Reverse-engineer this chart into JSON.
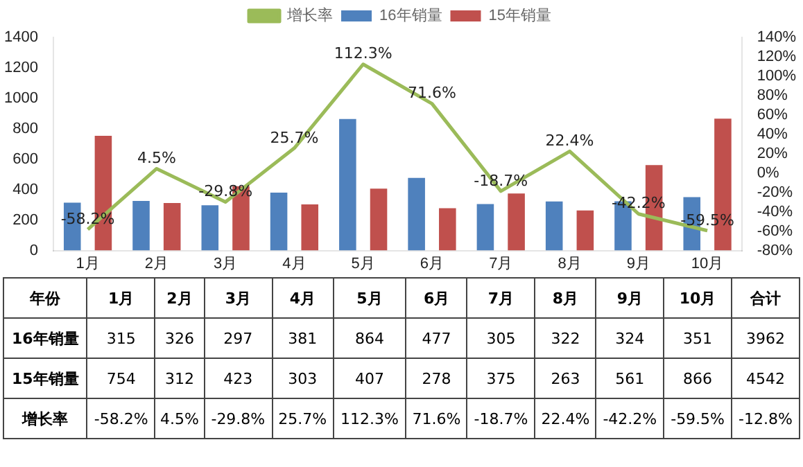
{
  "chart_data": {
    "type": "bar",
    "categories": [
      "1月",
      "2月",
      "3月",
      "4月",
      "5月",
      "6月",
      "7月",
      "8月",
      "9月",
      "10月"
    ],
    "series": [
      {
        "name": "16年销量",
        "color": "#4f81bd",
        "values": [
          315,
          326,
          297,
          381,
          864,
          477,
          305,
          322,
          324,
          351
        ],
        "value_labels": [
          "315",
          "326",
          "297",
          "381",
          "864",
          "477",
          "305",
          "322",
          "324",
          "351"
        ]
      },
      {
        "name": "15年销量",
        "color": "#c0504d",
        "values": [
          754,
          312,
          423,
          303,
          407,
          278,
          375,
          263,
          561,
          866
        ],
        "value_labels": [
          "754",
          "312",
          "423",
          "303",
          "407",
          "278",
          "375",
          "263",
          "561",
          "866"
        ]
      },
      {
        "name": "增长率",
        "type": "line",
        "axis": "y2",
        "color": "#9bbb59",
        "values": [
          -58.2,
          4.5,
          -29.8,
          25.7,
          112.3,
          71.6,
          -18.7,
          22.4,
          -42.2,
          -59.5
        ],
        "value_labels": [
          "-58.2%",
          "4.5%",
          "-29.8%",
          "25.7%",
          "112.3%",
          "71.6%",
          "-18.7%",
          "22.4%",
          "-42.2%",
          "-59.5%"
        ]
      }
    ],
    "ylim": [
      0,
      1400
    ],
    "yticks": [
      0,
      200,
      400,
      600,
      800,
      1000,
      1200,
      1400
    ],
    "y2lim": [
      -80,
      140
    ],
    "y2ticks": [
      {
        "value": -80,
        "label": "-80%"
      },
      {
        "value": -60,
        "label": "-60%"
      },
      {
        "value": -40,
        "label": "-40%"
      },
      {
        "value": -20,
        "label": "-20%"
      },
      {
        "value": 0,
        "label": "0%"
      },
      {
        "value": 20,
        "label": "20%"
      },
      {
        "value": 40,
        "label": "40%"
      },
      {
        "value": 60,
        "label": "60%"
      },
      {
        "value": 80,
        "label": "80%"
      },
      {
        "value": 100,
        "label": "100%"
      },
      {
        "value": 120,
        "label": "120%"
      },
      {
        "value": 140,
        "label": "140%"
      }
    ],
    "legend": "top",
    "grid": false,
    "marker": "none",
    "annotations": [
      "年份",
      "合计",
      "3962",
      "4542",
      "-12.8%"
    ]
  }
}
